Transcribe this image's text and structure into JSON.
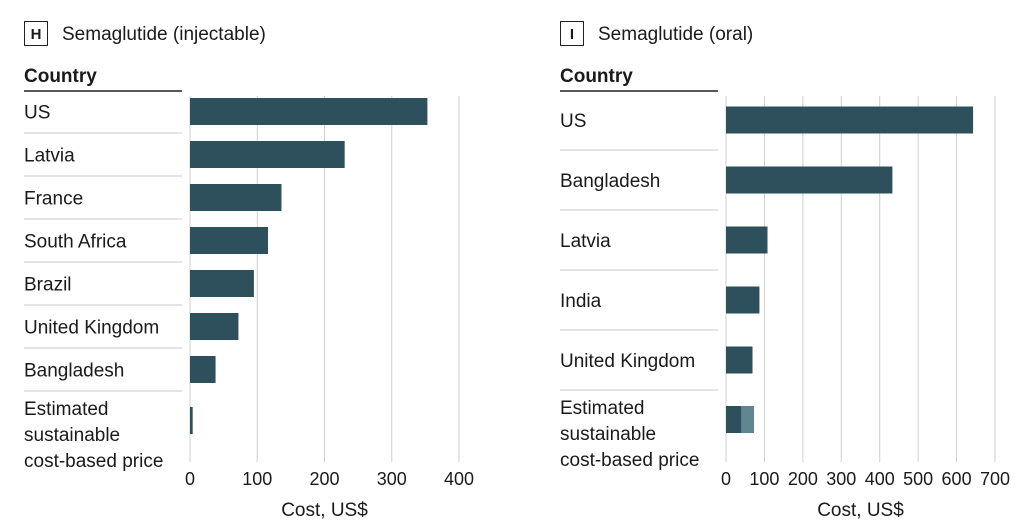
{
  "colors": {
    "bar": "#2e4f5c",
    "bar_light": "#5f858f",
    "grid": "#cfcfcf",
    "rule": "#222222",
    "separator": "#c8c8c8",
    "text": "#1a1a1a"
  },
  "chart_data": [
    {
      "type": "bar",
      "orientation": "horizontal",
      "panel_label": "H",
      "title": "Semaglutide (injectable)",
      "category_header": "Country",
      "categories": [
        "US",
        "Latvia",
        "France",
        "South Africa",
        "Brazil",
        "United Kingdom",
        "Bangladesh",
        "Estimated sustainable cost-based price"
      ],
      "category_lines": [
        [
          "US"
        ],
        [
          "Latvia"
        ],
        [
          "France"
        ],
        [
          "South Africa"
        ],
        [
          "Brazil"
        ],
        [
          "United Kingdom"
        ],
        [
          "Bangladesh"
        ],
        [
          "Estimated",
          "sustainable",
          "cost-based price"
        ]
      ],
      "values": [
        353,
        230,
        136,
        116,
        95,
        72,
        38,
        4
      ],
      "xlabel": "Cost, US$",
      "xlim": [
        0,
        400
      ],
      "xticks": [
        0,
        100,
        200,
        300,
        400
      ],
      "grid": true
    },
    {
      "type": "bar",
      "orientation": "horizontal",
      "panel_label": "I",
      "title": "Semaglutide (oral)",
      "category_header": "Country",
      "categories": [
        "US",
        "Bangladesh",
        "Latvia",
        "India",
        "United Kingdom",
        "Estimated sustainable cost-based price"
      ],
      "category_lines": [
        [
          "US"
        ],
        [
          "Bangladesh"
        ],
        [
          "Latvia"
        ],
        [
          "India"
        ],
        [
          "United Kingdom"
        ],
        [
          "Estimated",
          "sustainable",
          "cost-based price"
        ]
      ],
      "values": [
        643,
        433,
        108,
        87,
        69,
        40
      ],
      "range_upper": [
        null,
        null,
        null,
        null,
        null,
        73
      ],
      "xlabel": "Cost, US$",
      "xlim": [
        0,
        700
      ],
      "xticks": [
        0,
        100,
        200,
        300,
        400,
        500,
        600,
        700
      ],
      "grid": true
    }
  ]
}
